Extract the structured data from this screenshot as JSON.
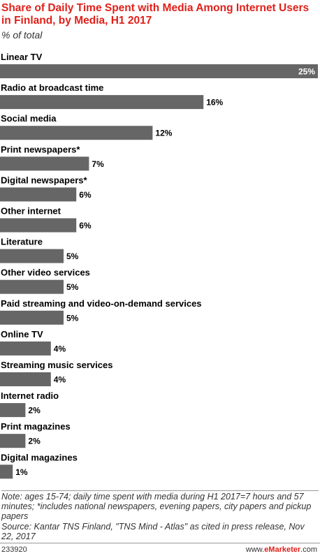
{
  "chart_data": {
    "type": "bar",
    "orientation": "horizontal",
    "title": "Share of Daily Time Spent with Media Among Internet Users in Finland, by Media, H1 2017",
    "subtitle": "% of total",
    "categories": [
      "Linear TV",
      "Radio at broadcast time",
      "Social media",
      "Print newspapers*",
      "Digital newspapers*",
      "Other internet",
      "Literature",
      "Other video services",
      "Paid streaming and video-on-demand services",
      "Online TV",
      "Streaming music services",
      "Internet radio",
      "Print magazines",
      "Digital magazines"
    ],
    "values": [
      25,
      16,
      12,
      7,
      6,
      6,
      5,
      5,
      5,
      4,
      4,
      2,
      2,
      1
    ],
    "value_labels": [
      "25%",
      "16%",
      "12%",
      "7%",
      "6%",
      "6%",
      "5%",
      "5%",
      "5%",
      "4%",
      "4%",
      "2%",
      "2%",
      "1%"
    ],
    "xlim": [
      0,
      25
    ],
    "grid": false,
    "legend": "none",
    "bar_color": "#666666"
  },
  "notes": {
    "note": "Note: ages 15-74; daily time spent with media during H1 2017=7 hours and 57 minutes; *includes national newspapers, evening papers, city papers and pickup papers",
    "source": "Source: Kantar TNS Finland, \"TNS Mind - Atlas\" as cited in press release, Nov 22, 2017"
  },
  "footer": {
    "chart_id": "233920",
    "brand_prefix": "www.",
    "brand_name": "eMarketer",
    "brand_suffix": ".com"
  },
  "colors": {
    "title": "#e0201a",
    "bar": "#666666",
    "label_outside": "#000000",
    "label_inside": "#ffffff"
  }
}
